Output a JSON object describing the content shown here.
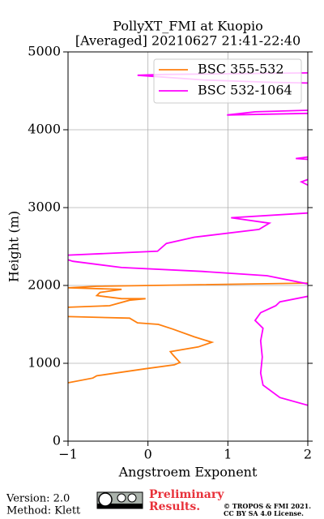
{
  "chart_data": {
    "type": "line",
    "title": "PollyXT_FMI at Kuopio",
    "subtitle": "[Averaged] 20210627 21:41-22:40",
    "x_label": "Angstroem Exponent",
    "y_label": "Height (m)",
    "xlim": [
      -1,
      2
    ],
    "ylim": [
      0,
      5000
    ],
    "xticks": [
      {
        "value": -1,
        "label": "−1"
      },
      0,
      1,
      2
    ],
    "yticks": [
      0,
      1000,
      2000,
      3000,
      4000,
      5000
    ],
    "grid": true,
    "legend": "upper right",
    "series": [
      {
        "name": "BSC 355-532",
        "color": "#ff7f0e",
        "x": [
          -1,
          -0.69,
          -0.64,
          -0.03,
          0.33,
          0.4,
          0.31,
          0.28,
          0.63,
          0.8,
          0.58,
          0.31,
          0.13,
          -0.13,
          -0.23,
          -1,
          null,
          -1,
          -0.48,
          -0.23,
          -0.03,
          -0.33,
          -0.64,
          -0.6,
          -0.33,
          -1,
          -0.64,
          2
        ],
        "values": [
          750,
          810,
          840,
          930,
          980,
          1010,
          1110,
          1150,
          1210,
          1270,
          1340,
          1440,
          1500,
          1520,
          1580,
          1600,
          null,
          1720,
          1740,
          1810,
          1830,
          1830,
          1870,
          1910,
          1950,
          1970,
          1990,
          2030
        ]
      },
      {
        "name": "BSC 532-1064",
        "color": "#ff00ff",
        "x": [
          2,
          1.65,
          1.44,
          1.41,
          1.43,
          1.41,
          1.44,
          1.34,
          1.41,
          1.6,
          1.65,
          2,
          null,
          2,
          1.49,
          0.68,
          -0.33,
          -0.94,
          -1,
          null,
          -1,
          0.12,
          0.23,
          0.58,
          1.39,
          1.52,
          1.04,
          2,
          null,
          2,
          1.92,
          2,
          null,
          2,
          1.85,
          2,
          null,
          2,
          0.99,
          1.34,
          2,
          null,
          2,
          1.5,
          0.7,
          -0.13,
          0.2,
          2
        ],
        "values": [
          460,
          560,
          720,
          875,
          1080,
          1290,
          1450,
          1550,
          1650,
          1740,
          1790,
          1860,
          null,
          2020,
          2125,
          2180,
          2230,
          2310,
          2330,
          null,
          2390,
          2440,
          2540,
          2620,
          2720,
          2800,
          2870,
          2930,
          null,
          3290,
          3330,
          3360,
          null,
          3620,
          3630,
          3650,
          null,
          4210,
          4190,
          4230,
          4250,
          null,
          4600,
          4610,
          4640,
          4700,
          4710,
          4730
        ]
      }
    ]
  },
  "footer": {
    "version": "Version: 2.0",
    "method": "Method: Klett",
    "preliminary": [
      "Preliminary",
      "Results."
    ],
    "copyright": [
      "© TROPOS & FMI 2021.",
      "CC BY SA 4.0 License."
    ]
  }
}
